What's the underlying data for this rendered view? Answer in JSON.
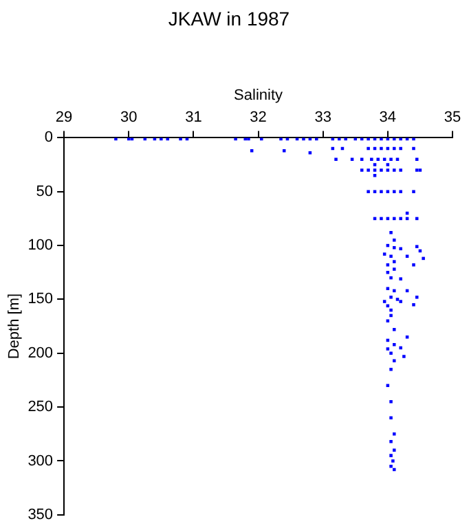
{
  "chart_data": {
    "type": "scatter",
    "title": "JKAW in 1987",
    "xlabel": "Salinity",
    "ylabel": "Depth [m]",
    "xlim": [
      29,
      35
    ],
    "xticks": [
      29,
      30,
      31,
      32,
      33,
      34,
      35
    ],
    "ylim": [
      350,
      0
    ],
    "yticks": [
      0,
      50,
      100,
      150,
      200,
      250,
      300,
      350
    ],
    "grid": false,
    "legend": false,
    "marker": "square",
    "series": [
      {
        "color": "#0000ff",
        "x": [
          29.8,
          30.0,
          30.05,
          30.25,
          30.4,
          30.5,
          30.6,
          30.8,
          30.9,
          31.65,
          31.8,
          31.85,
          32.05,
          32.35,
          32.45,
          32.6,
          32.7,
          32.8,
          32.9,
          33.15,
          33.25,
          33.35,
          33.5,
          33.6,
          33.7,
          33.8,
          33.9,
          34.0,
          34.1,
          34.2,
          34.3,
          34.4,
          31.9,
          32.4,
          32.8,
          33.15,
          33.3,
          33.7,
          33.8,
          33.9,
          34.0,
          34.1,
          34.2,
          34.4,
          33.2,
          33.45,
          33.6,
          33.75,
          33.85,
          33.95,
          34.05,
          34.15,
          34.45,
          33.8,
          34.0,
          33.6,
          33.7,
          33.8,
          33.9,
          34.0,
          34.1,
          34.2,
          34.45,
          34.5,
          33.8,
          33.7,
          33.8,
          33.9,
          34.0,
          34.1,
          34.2,
          34.4,
          33.8,
          33.9,
          34.0,
          34.1,
          34.2,
          34.3,
          34.45,
          34.3,
          34.05,
          34.1,
          34.0,
          34.1,
          34.2,
          34.45,
          34.5,
          33.95,
          34.05,
          34.3,
          34.55,
          34.0,
          34.1,
          34.4,
          34.0,
          34.05,
          34.2,
          34.1,
          34.0,
          34.1,
          34.3,
          34.45,
          34.05,
          34.15,
          33.95,
          34.2,
          34.0,
          34.4,
          34.05,
          34.05,
          34.0,
          34.1,
          34.3,
          34.0,
          34.1,
          34.2,
          34.0,
          34.05,
          34.25,
          34.1,
          34.05,
          34.0,
          34.05,
          34.05,
          34.1,
          34.05,
          34.1,
          34.05,
          34.08,
          34.05,
          34.1
        ],
        "values": [
          1,
          1,
          1,
          1,
          1,
          1,
          1,
          1,
          1,
          1,
          1,
          1,
          1,
          1,
          1,
          1,
          1,
          1,
          1,
          1,
          1,
          1,
          1,
          1,
          1,
          1,
          1,
          1,
          1,
          1,
          1,
          1,
          12,
          12,
          14,
          10,
          10,
          10,
          10,
          10,
          10,
          10,
          10,
          10,
          20,
          20,
          20,
          20,
          20,
          20,
          20,
          20,
          20,
          25,
          25,
          30,
          30,
          30,
          30,
          30,
          30,
          30,
          30,
          30,
          35,
          50,
          50,
          50,
          50,
          50,
          50,
          50,
          75,
          75,
          75,
          75,
          75,
          75,
          75,
          70,
          88,
          95,
          100,
          102,
          103,
          101,
          105,
          108,
          110,
          110,
          112,
          118,
          115,
          118,
          125,
          130,
          131,
          122,
          140,
          142,
          142,
          148,
          148,
          150,
          152,
          152,
          156,
          155,
          160,
          165,
          170,
          178,
          185,
          188,
          192,
          195,
          196,
          200,
          203,
          207,
          215,
          230,
          245,
          260,
          275,
          282,
          290,
          295,
          300,
          305,
          308
        ]
      }
    ]
  }
}
